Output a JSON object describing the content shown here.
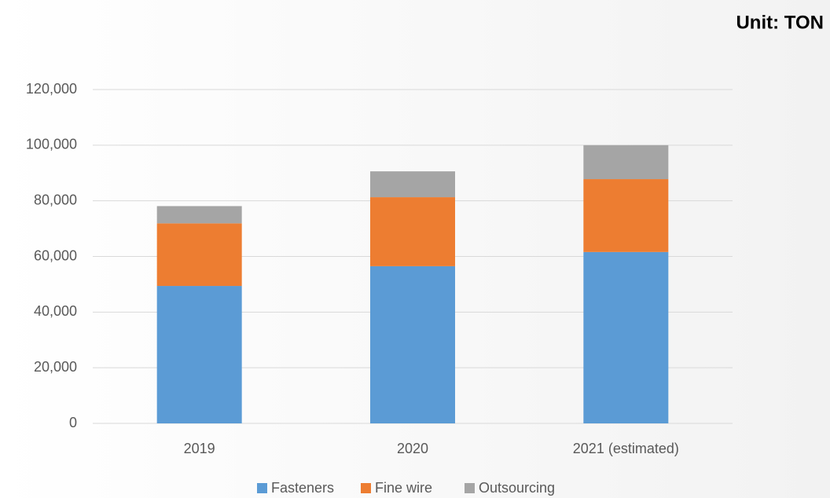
{
  "chart_data": {
    "type": "stacked_bar",
    "annotation": "Unit: TON",
    "categories": [
      "2019",
      "2020",
      "2021 (estimated)"
    ],
    "series": [
      {
        "name": "Fasteners",
        "color": "#5b9bd5",
        "values": [
          49400,
          56500,
          61600
        ]
      },
      {
        "name": "Fine wire",
        "color": "#ed7d31",
        "values": [
          22500,
          24800,
          26200
        ]
      },
      {
        "name": "Outsourcing",
        "color": "#a5a5a5",
        "values": [
          6200,
          9300,
          12200
        ]
      }
    ],
    "ylim": [
      0,
      120000
    ],
    "yticks": [
      0,
      {
        "value": 20000,
        "label": "20,000"
      },
      {
        "value": 40000,
        "label": "40,000"
      },
      {
        "value": 60000,
        "label": "60,000"
      },
      {
        "value": 80000,
        "label": "80,000"
      },
      {
        "value": 100000,
        "label": "100,000"
      },
      {
        "value": 120000,
        "label": "120,000"
      }
    ],
    "grid": true,
    "legend": "bottom"
  }
}
